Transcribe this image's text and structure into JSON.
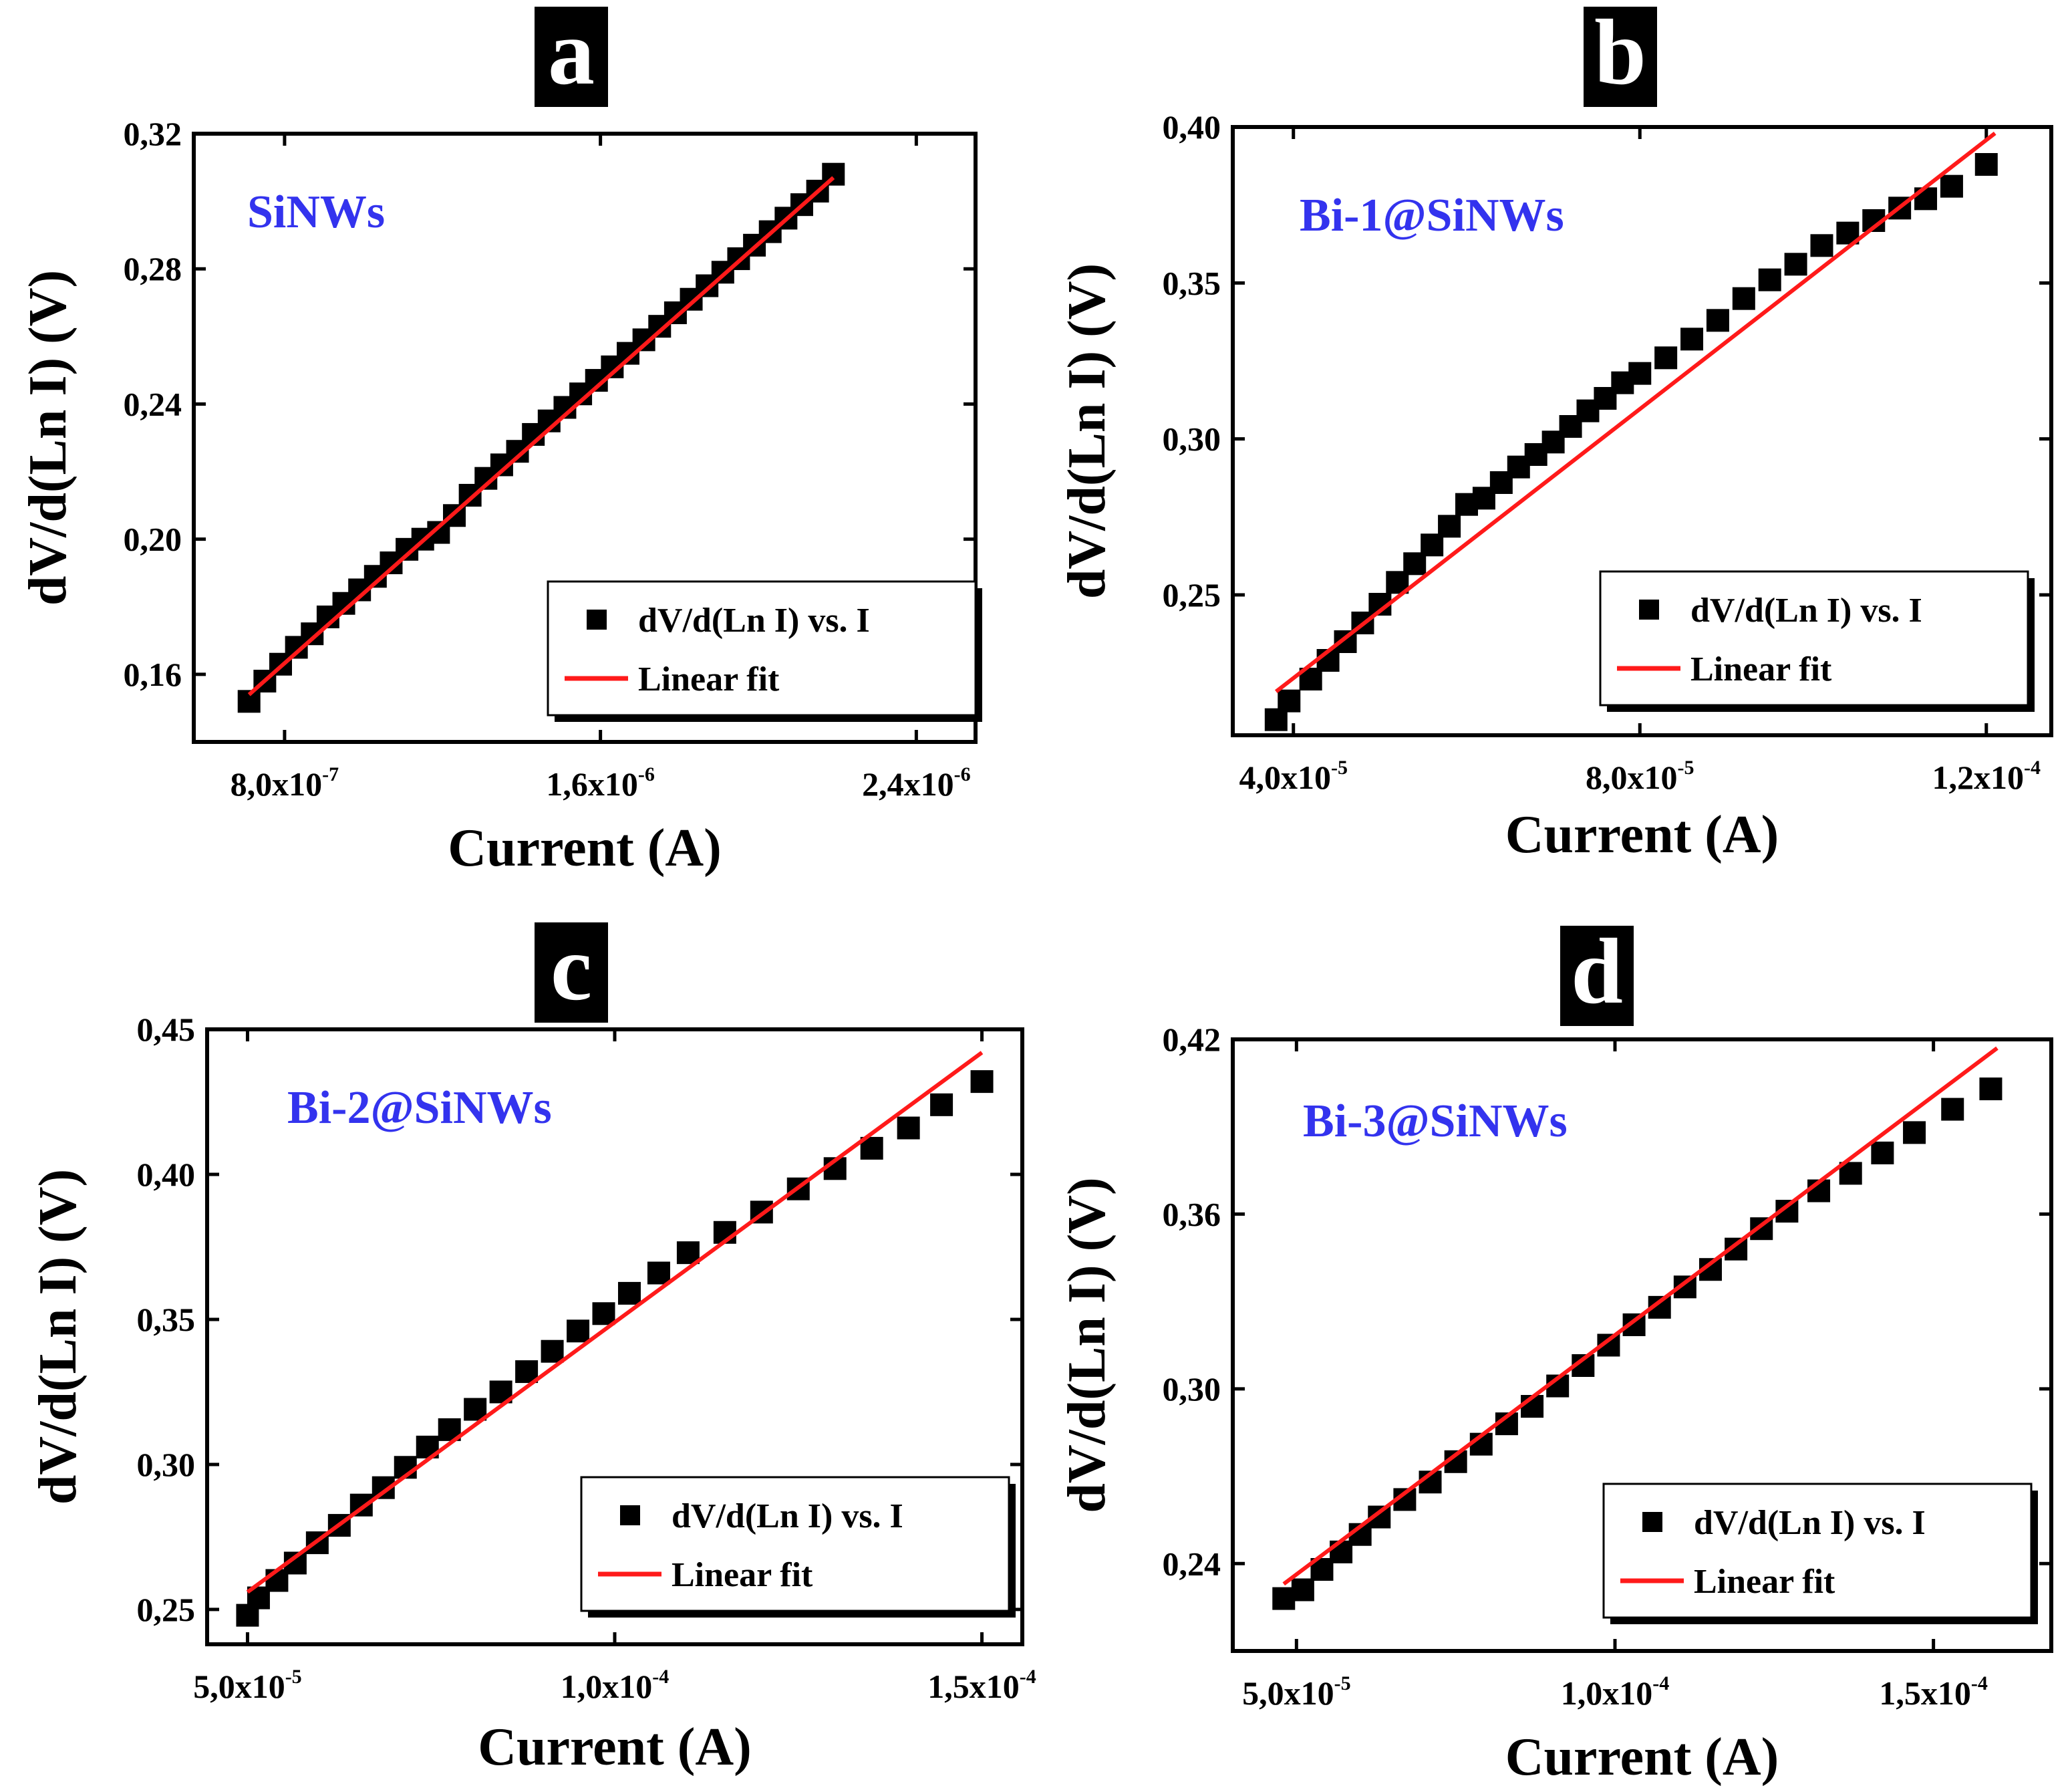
{
  "figure": {
    "colors": {
      "marker": "#000000",
      "fit_line": "#ff1a1a",
      "sample_label": "#3333ee",
      "tag_background": "#000000",
      "tag_text": "#ffffff"
    }
  },
  "chart_data": [
    {
      "panel": "a",
      "type": "scatter",
      "sample_label": "SiNWs",
      "xlabel": "Current (A)",
      "ylabel": "dV/d(Ln I) (V)",
      "xlim": [
        5.7e-07,
        2.55e-06
      ],
      "ylim": [
        0.14,
        0.32
      ],
      "x_ticks": [
        {
          "value": 8e-07,
          "mantissa": "8,0x10",
          "exponent": "-7"
        },
        {
          "value": 1.6e-06,
          "mantissa": "1,6x10",
          "exponent": "-6"
        },
        {
          "value": 2.4e-06,
          "mantissa": "2,4x10",
          "exponent": "-6"
        }
      ],
      "y_ticks": [
        {
          "value": 0.16,
          "label": "0,16"
        },
        {
          "value": 0.2,
          "label": "0,20"
        },
        {
          "value": 0.24,
          "label": "0,24"
        },
        {
          "value": 0.28,
          "label": "0,28"
        },
        {
          "value": 0.32,
          "label": "0,32"
        }
      ],
      "legend": {
        "position": "bottom-right",
        "entries": [
          "dV/d(Ln I) vs. I",
          "Linear fit"
        ]
      },
      "fit": {
        "x": [
          7.1e-07,
          2.19e-06
        ],
        "y": [
          0.154,
          0.307
        ]
      },
      "series": [
        {
          "name": "dV/d(Ln I) vs. I",
          "x": [
            7.1e-07,
            7.5e-07,
            7.9e-07,
            8.3e-07,
            8.7e-07,
            9.1e-07,
            9.5e-07,
            9.9e-07,
            1.03e-06,
            1.07e-06,
            1.11e-06,
            1.15e-06,
            1.19e-06,
            1.23e-06,
            1.27e-06,
            1.31e-06,
            1.35e-06,
            1.39e-06,
            1.43e-06,
            1.47e-06,
            1.51e-06,
            1.55e-06,
            1.59e-06,
            1.63e-06,
            1.67e-06,
            1.71e-06,
            1.75e-06,
            1.79e-06,
            1.83e-06,
            1.87e-06,
            1.91e-06,
            1.95e-06,
            1.99e-06,
            2.03e-06,
            2.07e-06,
            2.11e-06,
            2.15e-06,
            2.19e-06
          ],
          "y": [
            0.152,
            0.158,
            0.163,
            0.168,
            0.172,
            0.177,
            0.181,
            0.185,
            0.189,
            0.193,
            0.197,
            0.2,
            0.202,
            0.207,
            0.213,
            0.218,
            0.222,
            0.226,
            0.231,
            0.235,
            0.239,
            0.243,
            0.247,
            0.251,
            0.255,
            0.259,
            0.263,
            0.267,
            0.271,
            0.275,
            0.279,
            0.283,
            0.287,
            0.291,
            0.295,
            0.299,
            0.303,
            0.308
          ]
        }
      ]
    },
    {
      "panel": "b",
      "type": "scatter",
      "sample_label": "Bi-1@SiNWs",
      "xlabel": "Current (A)",
      "ylabel": "dV/d(Ln I) (V)",
      "xlim": [
        3.3e-05,
        0.0001275
      ],
      "ylim": [
        0.205,
        0.4
      ],
      "x_ticks": [
        {
          "value": 4e-05,
          "mantissa": "4,0x10",
          "exponent": "-5"
        },
        {
          "value": 8e-05,
          "mantissa": "8,0x10",
          "exponent": "-5"
        },
        {
          "value": 0.00012,
          "mantissa": "1,2x10",
          "exponent": "-4"
        }
      ],
      "y_ticks": [
        {
          "value": 0.25,
          "label": "0,25"
        },
        {
          "value": 0.3,
          "label": "0,30"
        },
        {
          "value": 0.35,
          "label": "0,35"
        },
        {
          "value": 0.4,
          "label": "0,40"
        }
      ],
      "legend": {
        "position": "bottom-right",
        "entries": [
          "dV/d(Ln I) vs. I",
          "Linear fit"
        ]
      },
      "fit": {
        "x": [
          3.8e-05,
          0.000121
        ],
        "y": [
          0.219,
          0.398
        ]
      },
      "series": [
        {
          "name": "dV/d(Ln I) vs. I",
          "x": [
            3.8e-05,
            3.95e-05,
            4.2e-05,
            4.4e-05,
            4.6e-05,
            4.8e-05,
            5e-05,
            5.2e-05,
            5.4e-05,
            5.6e-05,
            5.8e-05,
            6e-05,
            6.2e-05,
            6.4e-05,
            6.6e-05,
            6.8e-05,
            7e-05,
            7.2e-05,
            7.4e-05,
            7.6e-05,
            7.8e-05,
            8e-05,
            8.3e-05,
            8.6e-05,
            8.9e-05,
            9.2e-05,
            9.5e-05,
            9.8e-05,
            0.000101,
            0.000104,
            0.000107,
            0.00011,
            0.000113,
            0.000116,
            0.00012
          ],
          "y": [
            0.21,
            0.216,
            0.223,
            0.229,
            0.235,
            0.241,
            0.247,
            0.254,
            0.26,
            0.266,
            0.272,
            0.279,
            0.281,
            0.286,
            0.291,
            0.295,
            0.299,
            0.304,
            0.309,
            0.313,
            0.318,
            0.321,
            0.326,
            0.332,
            0.338,
            0.345,
            0.351,
            0.356,
            0.362,
            0.366,
            0.37,
            0.374,
            0.377,
            0.381,
            0.388
          ]
        }
      ]
    },
    {
      "panel": "c",
      "type": "scatter",
      "sample_label": "Bi-2@SiNWs",
      "xlabel": "Current (A)",
      "ylabel": "dV/d(Ln I) (V)",
      "xlim": [
        4.45e-05,
        0.0001555
      ],
      "ylim": [
        0.238,
        0.45
      ],
      "x_ticks": [
        {
          "value": 5e-05,
          "mantissa": "5,0x10",
          "exponent": "-5"
        },
        {
          "value": 0.0001,
          "mantissa": "1,0x10",
          "exponent": "-4"
        },
        {
          "value": 0.00015,
          "mantissa": "1,5x10",
          "exponent": "-4"
        }
      ],
      "y_ticks": [
        {
          "value": 0.25,
          "label": "0,25"
        },
        {
          "value": 0.3,
          "label": "0,30"
        },
        {
          "value": 0.35,
          "label": "0,35"
        },
        {
          "value": 0.4,
          "label": "0,40"
        },
        {
          "value": 0.45,
          "label": "0,45"
        }
      ],
      "legend": {
        "position": "bottom-right",
        "entries": [
          "dV/d(Ln I) vs. I",
          "Linear fit"
        ]
      },
      "fit": {
        "x": [
          5e-05,
          0.00015
        ],
        "y": [
          0.256,
          0.442
        ]
      },
      "series": [
        {
          "name": "dV/d(Ln I) vs. I",
          "x": [
            5e-05,
            5.15e-05,
            5.4e-05,
            5.65e-05,
            5.95e-05,
            6.25e-05,
            6.55e-05,
            6.85e-05,
            7.15e-05,
            7.45e-05,
            7.75e-05,
            8.1e-05,
            8.45e-05,
            8.8e-05,
            9.15e-05,
            9.5e-05,
            9.85e-05,
            0.000102,
            0.000106,
            0.00011,
            0.000115,
            0.00012,
            0.000125,
            0.00013,
            0.000135,
            0.00014,
            0.0001445,
            0.00015
          ],
          "y": [
            0.248,
            0.254,
            0.26,
            0.266,
            0.273,
            0.279,
            0.286,
            0.292,
            0.299,
            0.306,
            0.312,
            0.319,
            0.325,
            0.332,
            0.339,
            0.346,
            0.352,
            0.359,
            0.366,
            0.373,
            0.38,
            0.387,
            0.395,
            0.402,
            0.409,
            0.416,
            0.424,
            0.432
          ]
        }
      ]
    },
    {
      "panel": "d",
      "type": "scatter",
      "sample_label": "Bi-3@SiNWs",
      "xlabel": "Current (A)",
      "ylabel": "dV/d(Ln I) (V)",
      "xlim": [
        4e-05,
        0.0001685
      ],
      "ylim": [
        0.21,
        0.42
      ],
      "x_ticks": [
        {
          "value": 5e-05,
          "mantissa": "5,0x10",
          "exponent": "-5"
        },
        {
          "value": 0.0001,
          "mantissa": "1,0x10",
          "exponent": "-4"
        },
        {
          "value": 0.00015,
          "mantissa": "1,5x10",
          "exponent": "-4"
        }
      ],
      "y_ticks": [
        {
          "value": 0.24,
          "label": "0,24"
        },
        {
          "value": 0.3,
          "label": "0,30"
        },
        {
          "value": 0.36,
          "label": "0,36"
        },
        {
          "value": 0.42,
          "label": "0,42"
        }
      ],
      "legend": {
        "position": "bottom-right",
        "entries": [
          "dV/d(Ln I) vs. I",
          "Linear fit"
        ]
      },
      "fit": {
        "x": [
          4.8e-05,
          0.00016
        ],
        "y": [
          0.233,
          0.417
        ]
      },
      "series": [
        {
          "name": "dV/d(Ln I) vs. I",
          "x": [
            4.8e-05,
            5.1e-05,
            5.4e-05,
            5.7e-05,
            6e-05,
            6.3e-05,
            6.7e-05,
            7.1e-05,
            7.5e-05,
            7.9e-05,
            8.3e-05,
            8.7e-05,
            9.1e-05,
            9.5e-05,
            9.9e-05,
            0.000103,
            0.000107,
            0.000111,
            0.000115,
            0.000119,
            0.000123,
            0.000127,
            0.000132,
            0.000137,
            0.000142,
            0.000147,
            0.000153,
            0.000159
          ],
          "y": [
            0.228,
            0.231,
            0.238,
            0.244,
            0.25,
            0.256,
            0.262,
            0.268,
            0.275,
            0.281,
            0.288,
            0.294,
            0.301,
            0.308,
            0.315,
            0.322,
            0.328,
            0.335,
            0.341,
            0.348,
            0.355,
            0.361,
            0.368,
            0.374,
            0.381,
            0.388,
            0.396,
            0.403
          ]
        }
      ]
    }
  ]
}
